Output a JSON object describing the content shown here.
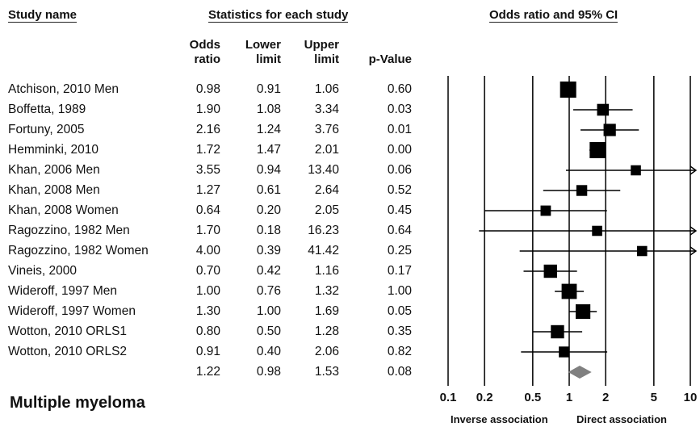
{
  "headers": {
    "study": "Study name",
    "stats": "Statistics for each study",
    "forest": "Odds ratio and 95% CI"
  },
  "columns": {
    "odds_l1": "Odds",
    "odds_l2": "ratio",
    "lower_l1": "Lower",
    "lower_l2": "limit",
    "upper_l1": "Upper",
    "upper_l2": "limit",
    "p": "p-Value"
  },
  "chart_data": {
    "type": "forest",
    "x_scale": "log",
    "xlim": [
      0.1,
      10
    ],
    "x_ticks": [
      "0.1",
      "0.2",
      "0.5",
      "1",
      "2",
      "5",
      "10"
    ],
    "left_label": "Inverse association",
    "right_label": "Direct association",
    "studies": [
      {
        "name": "Atchison, 2010 Men",
        "or": "0.98",
        "lower": "0.91",
        "upper": "1.06",
        "p": "0.60",
        "weight": 1.0
      },
      {
        "name": "Boffetta, 1989",
        "or": "1.90",
        "lower": "1.08",
        "upper": "3.34",
        "p": "0.03",
        "weight": 0.55
      },
      {
        "name": "Fortuny, 2005",
        "or": "2.16",
        "lower": "1.24",
        "upper": "3.76",
        "p": "0.01",
        "weight": 0.6
      },
      {
        "name": "Hemminki, 2010",
        "or": "1.72",
        "lower": "1.47",
        "upper": "2.01",
        "p": "0.00",
        "weight": 1.0
      },
      {
        "name": "Khan, 2006 Men",
        "or": "3.55",
        "lower": "0.94",
        "upper": "13.40",
        "p": "0.06",
        "weight": 0.38
      },
      {
        "name": "Khan, 2008 Men",
        "or": "1.27",
        "lower": "0.61",
        "upper": "2.64",
        "p": "0.52",
        "weight": 0.45
      },
      {
        "name": "Khan, 2008 Women",
        "or": "0.64",
        "lower": "0.20",
        "upper": "2.05",
        "p": "0.45",
        "weight": 0.4
      },
      {
        "name": "Ragozzino, 1982 Men",
        "or": "1.70",
        "lower": "0.18",
        "upper": "16.23",
        "p": "0.64",
        "weight": 0.38
      },
      {
        "name": "Ragozzino, 1982 Women",
        "or": "4.00",
        "lower": "0.39",
        "upper": "41.42",
        "p": "0.25",
        "weight": 0.38
      },
      {
        "name": "Vineis, 2000",
        "or": "0.70",
        "lower": "0.42",
        "upper": "1.16",
        "p": "0.17",
        "weight": 0.7
      },
      {
        "name": "Wideroff, 1997 Men",
        "or": "1.00",
        "lower": "0.76",
        "upper": "1.32",
        "p": "1.00",
        "weight": 0.9
      },
      {
        "name": "Wideroff, 1997 Women",
        "or": "1.30",
        "lower": "1.00",
        "upper": "1.69",
        "p": "0.05",
        "weight": 0.85
      },
      {
        "name": "Wotton, 2010 ORLS1",
        "or": "0.80",
        "lower": "0.50",
        "upper": "1.28",
        "p": "0.35",
        "weight": 0.7
      },
      {
        "name": "Wotton, 2010 ORLS2",
        "or": "0.91",
        "lower": "0.40",
        "upper": "2.06",
        "p": "0.82",
        "weight": 0.45
      }
    ],
    "summary": {
      "name": "",
      "or": "1.22",
      "lower": "0.98",
      "upper": "1.53",
      "p": "0.08"
    }
  },
  "footer": {
    "title": "Multiple myeloma"
  },
  "colors": {
    "marker": "#000000",
    "summary": "#808080",
    "line": "#000000"
  }
}
